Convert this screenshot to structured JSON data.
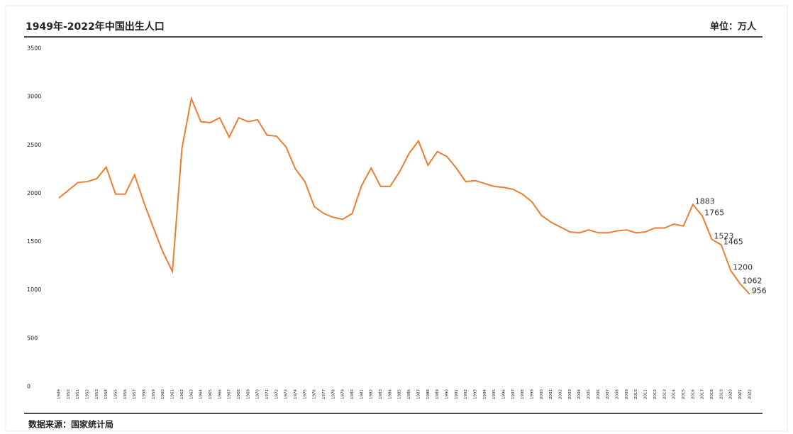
{
  "chart_data": {
    "type": "line",
    "title": "1949年-2022年中国出生人口",
    "unit": "单位：万人",
    "source": "数据来源：国家统计局",
    "categories": [
      "1949",
      "1950",
      "1951",
      "1952",
      "1953",
      "1954",
      "1955",
      "1956",
      "1957",
      "1958",
      "1959",
      "1960",
      "1961",
      "1962",
      "1963",
      "1964",
      "1965",
      "1966",
      "1967",
      "1968",
      "1969",
      "1970",
      "1971",
      "1972",
      "1973",
      "1974",
      "1975",
      "1976",
      "1977",
      "1978",
      "1979",
      "1980",
      "1981",
      "1982",
      "1983",
      "1984",
      "1985",
      "1986",
      "1987",
      "1988",
      "1989",
      "1990",
      "1991",
      "1992",
      "1993",
      "1994",
      "1995",
      "1996",
      "1997",
      "1998",
      "1999",
      "2000",
      "2001",
      "2002",
      "2003",
      "2004",
      "2005",
      "2006",
      "2007",
      "2008",
      "2009",
      "2010",
      "2011",
      "2012",
      "2013",
      "2014",
      "2015",
      "2016",
      "2017",
      "2018",
      "2019",
      "2020",
      "2021",
      "2022"
    ],
    "values": [
      1950,
      2030,
      2110,
      2120,
      2150,
      2270,
      1990,
      1990,
      2190,
      1900,
      1640,
      1390,
      1190,
      2460,
      2980,
      2740,
      2730,
      2780,
      2580,
      2780,
      2740,
      2760,
      2600,
      2590,
      2480,
      2250,
      2120,
      1860,
      1790,
      1750,
      1730,
      1790,
      2080,
      2260,
      2070,
      2070,
      2220,
      2410,
      2540,
      2290,
      2430,
      2380,
      2260,
      2120,
      2130,
      2100,
      2070,
      2060,
      2040,
      1990,
      1910,
      1770,
      1700,
      1650,
      1600,
      1590,
      1620,
      1590,
      1590,
      1610,
      1620,
      1590,
      1600,
      1640,
      1640,
      1680,
      1660,
      1883,
      1765,
      1523,
      1465,
      1200,
      1062,
      956
    ],
    "value_labels": [
      null,
      null,
      null,
      null,
      null,
      null,
      null,
      null,
      null,
      null,
      null,
      null,
      null,
      null,
      null,
      null,
      null,
      null,
      null,
      null,
      null,
      null,
      null,
      null,
      null,
      null,
      null,
      null,
      null,
      null,
      null,
      null,
      null,
      null,
      null,
      null,
      null,
      null,
      null,
      null,
      null,
      null,
      null,
      null,
      null,
      null,
      null,
      null,
      null,
      null,
      null,
      null,
      null,
      null,
      null,
      null,
      null,
      null,
      null,
      null,
      null,
      null,
      null,
      null,
      null,
      null,
      null,
      "1883",
      "1765",
      "1523",
      "1465",
      "1200",
      "1062",
      "956"
    ],
    "color": "#ed7d31",
    "ylim": [
      0,
      3500
    ],
    "yticks": [
      0,
      500,
      1000,
      1500,
      2000,
      2500,
      3000,
      3500
    ],
    "grid": false
  }
}
